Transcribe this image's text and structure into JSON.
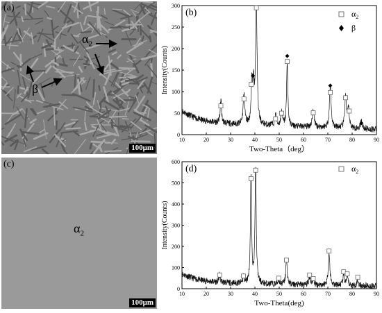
{
  "panel_a": {
    "label": "(a)",
    "scale": "100μm",
    "phase_alpha": "α",
    "phase_alpha_sub": "2",
    "phase_beta": "β"
  },
  "panel_c": {
    "label": "(c)",
    "scale": "100μm",
    "phase_alpha": "α",
    "phase_alpha_sub": "2"
  },
  "chart_data": [
    {
      "panel": "(b)",
      "type": "line",
      "xlabel": "Two-Theta（deg）",
      "ylabel": "Intensity(Counts)",
      "xlim": [
        10,
        90
      ],
      "ylim": [
        0,
        300
      ],
      "xticks": [
        10,
        20,
        30,
        40,
        50,
        60,
        70,
        80,
        90
      ],
      "yticks": [
        0,
        50,
        100,
        150,
        200,
        250,
        300
      ],
      "legend": [
        {
          "marker": "square",
          "label": "α",
          "sub": "2"
        },
        {
          "marker": "diamond",
          "label": "β"
        }
      ],
      "baseline": [
        [
          10,
          55
        ],
        [
          12,
          48
        ],
        [
          15,
          40
        ],
        [
          18,
          34
        ],
        [
          22,
          30
        ],
        [
          26,
          27
        ],
        [
          30,
          25
        ],
        [
          34,
          23
        ],
        [
          40,
          22
        ],
        [
          50,
          20
        ],
        [
          60,
          18
        ],
        [
          70,
          16
        ],
        [
          80,
          14
        ],
        [
          90,
          12
        ]
      ],
      "peaks": [
        {
          "x": 26.0,
          "y": 55,
          "w": 0.3
        },
        {
          "x": 35.5,
          "y": 70,
          "w": 0.4
        },
        {
          "x": 38.8,
          "y": 102,
          "w": 0.35
        },
        {
          "x": 39.5,
          "y": 82,
          "w": 0.3
        },
        {
          "x": 40.6,
          "y": 285,
          "w": 0.35
        },
        {
          "x": 48.5,
          "y": 26,
          "w": 0.4
        },
        {
          "x": 51.0,
          "y": 32,
          "w": 0.4
        },
        {
          "x": 53.3,
          "y": 150,
          "w": 0.3
        },
        {
          "x": 64.0,
          "y": 38,
          "w": 0.5
        },
        {
          "x": 71.0,
          "y": 100,
          "w": 0.4
        },
        {
          "x": 77.3,
          "y": 72,
          "w": 0.4
        },
        {
          "x": 78.5,
          "y": 45,
          "w": 0.4
        },
        {
          "x": 83.8,
          "y": 20,
          "w": 0.4
        }
      ],
      "markers_alpha2": [
        [
          26.0,
          62
        ],
        [
          35.5,
          78
        ],
        [
          38.5,
          112
        ],
        [
          40.6,
          290
        ],
        [
          48.5,
          32
        ],
        [
          51.0,
          45
        ],
        [
          53.3,
          165
        ],
        [
          64.0,
          46
        ],
        [
          71.0,
          93
        ],
        [
          77.3,
          81
        ],
        [
          78.8,
          50
        ]
      ],
      "markers_beta": [
        [
          39.2,
          132
        ],
        [
          53.3,
          178
        ],
        [
          71.0,
          109
        ],
        [
          83.8,
          22
        ]
      ]
    },
    {
      "panel": "(d)",
      "type": "line",
      "xlabel": "Two-Theta(deg)",
      "ylabel": "Intensity(Counts)",
      "xlim": [
        10,
        90
      ],
      "ylim": [
        0,
        600
      ],
      "xticks": [
        10,
        20,
        30,
        40,
        50,
        60,
        70,
        80,
        90
      ],
      "yticks": [
        0,
        100,
        200,
        300,
        400,
        500,
        600
      ],
      "legend": [
        {
          "marker": "square",
          "label": "α",
          "sub": "2"
        }
      ],
      "baseline": [
        [
          10,
          70
        ],
        [
          12,
          60
        ],
        [
          15,
          48
        ],
        [
          18,
          40
        ],
        [
          22,
          34
        ],
        [
          26,
          30
        ],
        [
          30,
          27
        ],
        [
          35,
          24
        ],
        [
          40,
          22
        ],
        [
          50,
          20
        ],
        [
          60,
          18
        ],
        [
          70,
          16
        ],
        [
          80,
          14
        ],
        [
          90,
          12
        ]
      ],
      "peaks": [
        {
          "x": 25.5,
          "y": 35,
          "w": 0.3
        },
        {
          "x": 35.3,
          "y": 35,
          "w": 0.3
        },
        {
          "x": 38.4,
          "y": 500,
          "w": 0.3
        },
        {
          "x": 40.3,
          "y": 550,
          "w": 0.3
        },
        {
          "x": 49.8,
          "y": 20,
          "w": 0.4
        },
        {
          "x": 53.0,
          "y": 115,
          "w": 0.35
        },
        {
          "x": 62.5,
          "y": 40,
          "w": 0.4
        },
        {
          "x": 64.0,
          "y": 25,
          "w": 0.4
        },
        {
          "x": 70.5,
          "y": 150,
          "w": 0.4
        },
        {
          "x": 76.5,
          "y": 45,
          "w": 0.4
        },
        {
          "x": 78.0,
          "y": 40,
          "w": 0.4
        },
        {
          "x": 82.3,
          "y": 25,
          "w": 0.4
        }
      ],
      "markers_alpha2": [
        [
          25.5,
          55
        ],
        [
          35.3,
          50
        ],
        [
          38.4,
          510
        ],
        [
          40.3,
          550
        ],
        [
          49.8,
          40
        ],
        [
          53.0,
          125
        ],
        [
          62.5,
          55
        ],
        [
          64.0,
          38
        ],
        [
          70.5,
          168
        ],
        [
          76.5,
          70
        ],
        [
          78.0,
          60
        ],
        [
          82.3,
          45
        ]
      ]
    }
  ]
}
